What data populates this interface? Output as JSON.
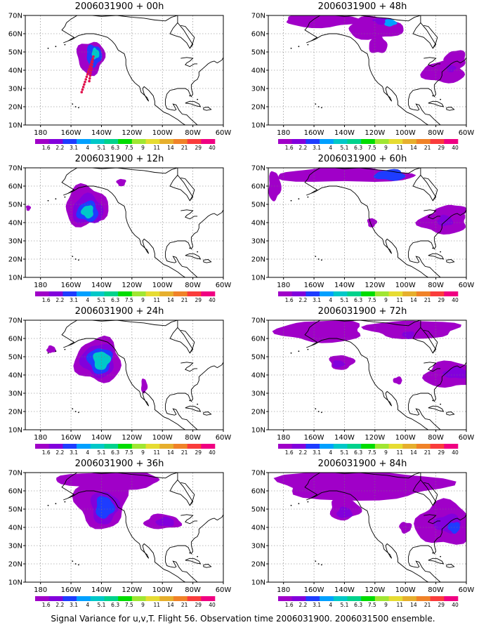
{
  "panels": [
    {
      "id": "p00",
      "title": "2006031900 + 00h",
      "forecast_hour": 0
    },
    {
      "id": "p48",
      "title": "2006031900 + 48h",
      "forecast_hour": 48
    },
    {
      "id": "p12",
      "title": "2006031900 + 12h",
      "forecast_hour": 12
    },
    {
      "id": "p60",
      "title": "2006031900 + 60h",
      "forecast_hour": 60
    },
    {
      "id": "p24",
      "title": "2006031900 + 24h",
      "forecast_hour": 24
    },
    {
      "id": "p72",
      "title": "2006031900 + 72h",
      "forecast_hour": 72
    },
    {
      "id": "p36",
      "title": "2006031900 + 36h",
      "forecast_hour": 36
    },
    {
      "id": "p84",
      "title": "2006031900 + 84h",
      "forecast_hour": 84
    }
  ],
  "map": {
    "lon_range": [
      170,
      300
    ],
    "lat_range": [
      10,
      70
    ],
    "lon_ticks": [
      "180",
      "160W",
      "140W",
      "120W",
      "100W",
      "80W",
      "60W"
    ],
    "lat_ticks": [
      "10N",
      "20N",
      "30N",
      "40N",
      "50N",
      "60N",
      "70N"
    ],
    "grid": "dotted"
  },
  "colorbar": {
    "labels": [
      "1.6",
      "2.2",
      "3.1",
      "4",
      "5.1",
      "6.3",
      "7.5",
      "9",
      "11",
      "14",
      "21",
      "29",
      "40"
    ],
    "colors": [
      "#a000c8",
      "#8200dc",
      "#1e3cff",
      "#00a0ff",
      "#00c8c8",
      "#00d28c",
      "#00dc00",
      "#a0e632",
      "#e6dc32",
      "#e6af2d",
      "#f08228",
      "#fa3c3c",
      "#f00082"
    ]
  },
  "footer": "Signal Variance for u,v,T. Flight 56. Observation time 2006031900. 2006031500 ensemble."
}
